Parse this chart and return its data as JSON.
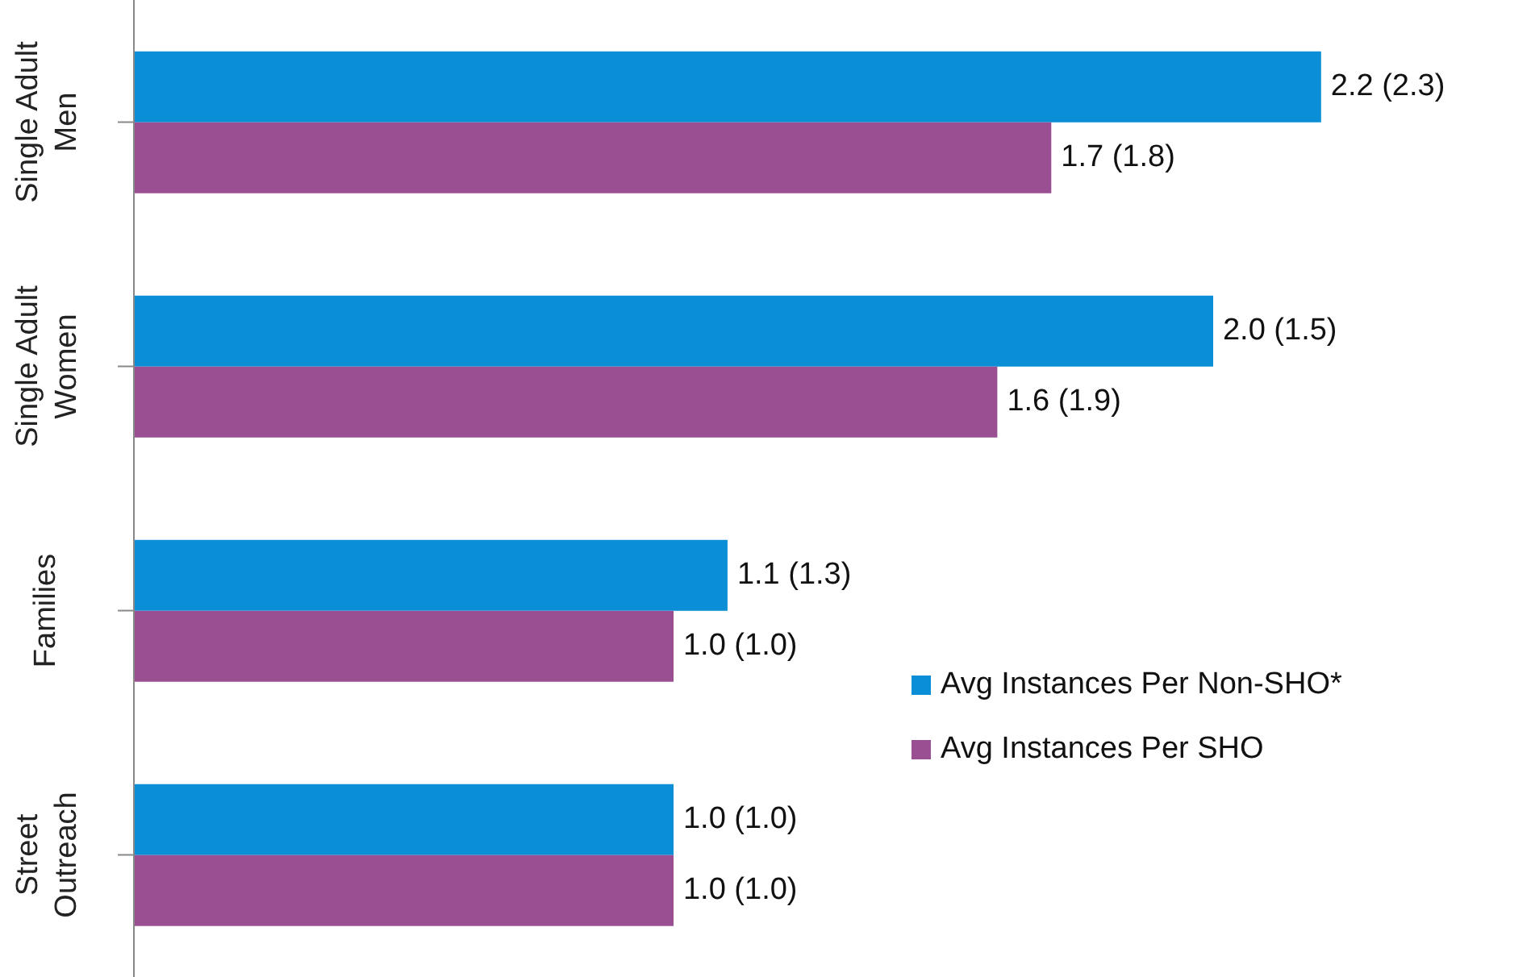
{
  "chart_data": {
    "type": "bar",
    "orientation": "horizontal",
    "data_labels": false,
    "legend": "right",
    "categories": [
      "Single Adult Men",
      "Single Adult Women",
      "Families",
      "Street Outreach"
    ],
    "series": [
      {
        "name": "Avg Instances Per Non-SHO*",
        "color": "#0a8fd6",
        "values": [
          2.2,
          2.0,
          1.1,
          1.0
        ],
        "value_labels": [
          "2.2 (2.3)",
          "2.0 (1.5)",
          "1.1 (1.3)",
          "1.0 (1.0)"
        ]
      },
      {
        "name": "Avg Instances Per SHO",
        "color": "#9b4f93",
        "values": [
          1.7,
          1.6,
          1.0,
          1.0
        ],
        "value_labels": [
          "1.7 (1.8)",
          "1.6 (1.9)",
          "1.0 (1.0)",
          "1.0 (1.0)"
        ]
      }
    ]
  }
}
